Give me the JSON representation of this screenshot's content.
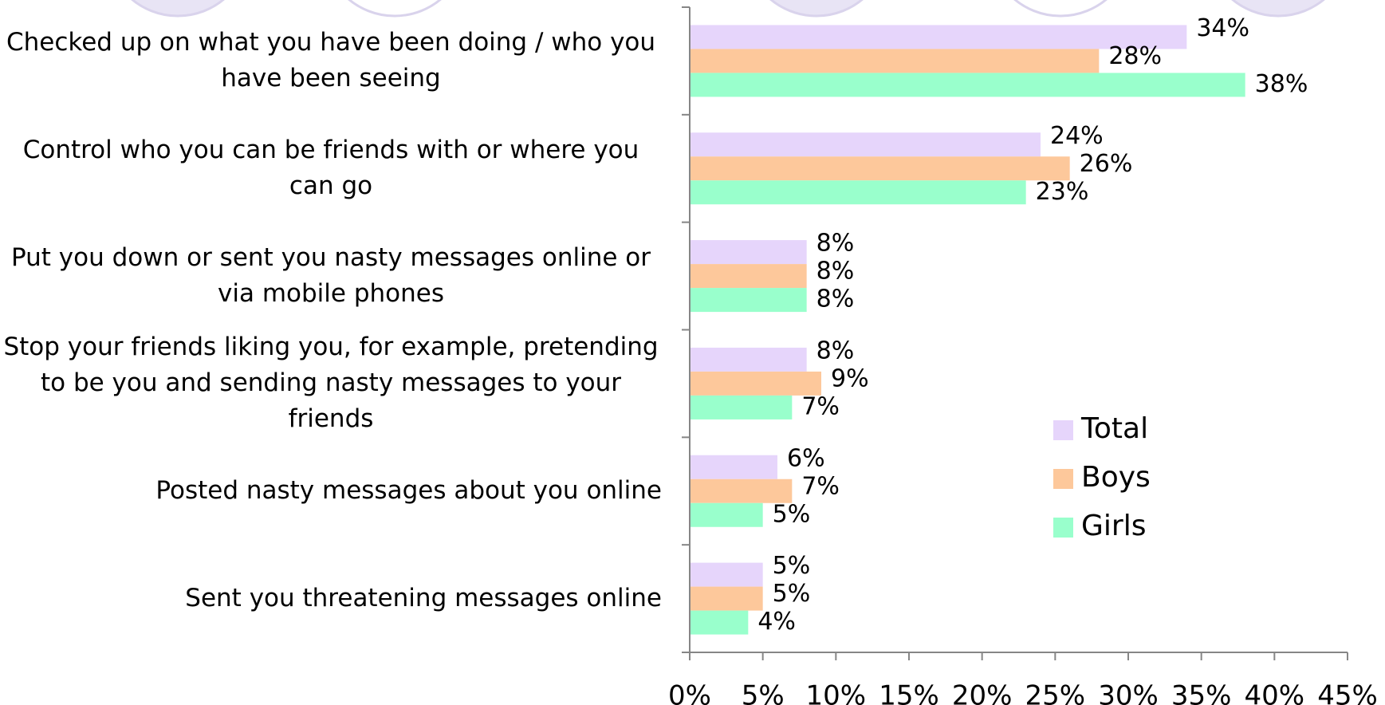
{
  "chart_data": {
    "type": "bar",
    "orientation": "horizontal",
    "categories": [
      "Checked up on what you have been doing / who you have been seeing",
      "Control who you can be friends with or where you can go",
      "Put you down or sent you nasty messages online or via mobile phones",
      "Stop your friends liking you, for example, pretending to be you and sending nasty messages to your friends",
      "Posted nasty messages about you online",
      "Sent you threatening messages online"
    ],
    "series": [
      {
        "name": "Total",
        "color": "#e6d5fb",
        "values": [
          34,
          24,
          8,
          8,
          6,
          5
        ],
        "value_labels": [
          "34%",
          "24%",
          "8%",
          "8%",
          "6%",
          "5%"
        ]
      },
      {
        "name": "Boys",
        "color": "#fdc89b",
        "values": [
          28,
          26,
          8,
          9,
          7,
          5
        ],
        "value_labels": [
          "28%",
          "26%",
          "8%",
          "9%",
          "7%",
          "5%"
        ]
      },
      {
        "name": "Girls",
        "color": "#99ffcc",
        "values": [
          38,
          23,
          8,
          7,
          5,
          4
        ],
        "value_labels": [
          "38%",
          "23%",
          "8%",
          "7%",
          "5%",
          "4%"
        ]
      }
    ],
    "xlim": [
      0,
      45
    ],
    "xticks": [
      {
        "value": 0,
        "label": "0%"
      },
      {
        "value": 5,
        "label": "5%"
      },
      {
        "value": 10,
        "label": "10%"
      },
      {
        "value": 15,
        "label": "15%"
      },
      {
        "value": 20,
        "label": "20%"
      },
      {
        "value": 25,
        "label": "25%"
      },
      {
        "value": 30,
        "label": "30%"
      },
      {
        "value": 35,
        "label": "35%"
      },
      {
        "value": 40,
        "label": "40%"
      },
      {
        "value": 45,
        "label": "45%"
      }
    ],
    "legend": "right"
  }
}
